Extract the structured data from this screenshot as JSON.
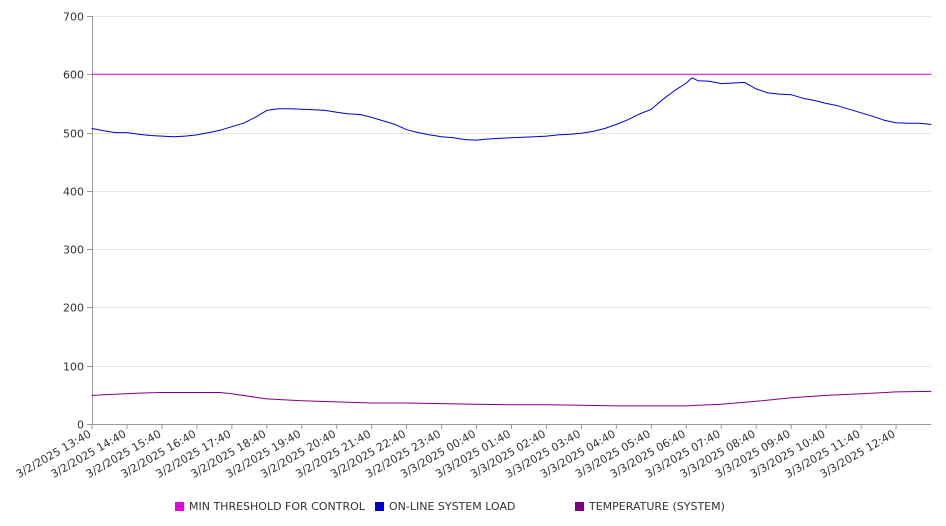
{
  "chart_data": {
    "type": "line",
    "title": "",
    "xlabel": "",
    "ylabel": "",
    "ylim": [
      0,
      700
    ],
    "y_ticks": [
      0,
      100,
      200,
      300,
      400,
      500,
      600,
      700
    ],
    "grid": "horizontal",
    "legend_position": "bottom",
    "x_tick_labels": [
      "3/2/2025 13:40",
      "3/2/2025 14:40",
      "3/2/2025 15:40",
      "3/2/2025 16:40",
      "3/2/2025 17:40",
      "3/2/2025 18:40",
      "3/2/2025 19:40",
      "3/2/2025 20:40",
      "3/2/2025 21:40",
      "3/2/2025 22:40",
      "3/2/2025 23:40",
      "3/3/2025 00:40",
      "3/3/2025 01:40",
      "3/3/2025 02:40",
      "3/3/2025 03:40",
      "3/3/2025 04:40",
      "3/3/2025 05:40",
      "3/3/2025 06:40",
      "3/3/2025 07:40",
      "3/3/2025 08:40",
      "3/3/2025 09:40",
      "3/3/2025 10:40",
      "3/3/2025 11:40",
      "3/3/2025 12:40"
    ],
    "x_range": [
      "3/2/2025 13:40",
      "3/3/2025 13:40"
    ],
    "series": [
      {
        "name": "MIN THRESHOLD FOR CONTROL",
        "color": "#e600e6",
        "points": [
          [
            "3/2/2025 13:40",
            600
          ],
          [
            "3/3/2025 13:40",
            600
          ]
        ]
      },
      {
        "name": "ON-LINE SYSTEM LOAD",
        "color": "#0000cc",
        "points": [
          [
            "3/2/2025 13:40",
            507
          ],
          [
            "3/2/2025 14:00",
            503
          ],
          [
            "3/2/2025 14:20",
            500
          ],
          [
            "3/2/2025 14:40",
            500
          ],
          [
            "3/2/2025 15:00",
            497
          ],
          [
            "3/2/2025 15:20",
            495
          ],
          [
            "3/2/2025 15:40",
            494
          ],
          [
            "3/2/2025 16:00",
            493
          ],
          [
            "3/2/2025 16:20",
            494
          ],
          [
            "3/2/2025 16:40",
            496
          ],
          [
            "3/2/2025 17:00",
            500
          ],
          [
            "3/2/2025 17:20",
            504
          ],
          [
            "3/2/2025 17:40",
            510
          ],
          [
            "3/2/2025 18:00",
            516
          ],
          [
            "3/2/2025 18:20",
            526
          ],
          [
            "3/2/2025 18:40",
            538
          ],
          [
            "3/2/2025 19:00",
            541
          ],
          [
            "3/2/2025 19:20",
            541
          ],
          [
            "3/2/2025 19:40",
            540
          ],
          [
            "3/2/2025 20:00",
            539
          ],
          [
            "3/2/2025 20:20",
            538
          ],
          [
            "3/2/2025 20:40",
            535
          ],
          [
            "3/2/2025 21:00",
            532
          ],
          [
            "3/2/2025 21:20",
            531
          ],
          [
            "3/2/2025 21:40",
            526
          ],
          [
            "3/2/2025 22:00",
            520
          ],
          [
            "3/2/2025 22:20",
            514
          ],
          [
            "3/2/2025 22:40",
            505
          ],
          [
            "3/2/2025 23:00",
            500
          ],
          [
            "3/2/2025 23:20",
            496
          ],
          [
            "3/2/2025 23:40",
            493
          ],
          [
            "3/3/2025 00:00",
            491
          ],
          [
            "3/3/2025 00:20",
            488
          ],
          [
            "3/3/2025 00:40",
            487
          ],
          [
            "3/3/2025 01:00",
            489
          ],
          [
            "3/3/2025 01:20",
            490
          ],
          [
            "3/3/2025 01:40",
            491
          ],
          [
            "3/3/2025 02:00",
            492
          ],
          [
            "3/3/2025 02:20",
            493
          ],
          [
            "3/3/2025 02:40",
            494
          ],
          [
            "3/3/2025 03:00",
            496
          ],
          [
            "3/3/2025 03:20",
            497
          ],
          [
            "3/3/2025 03:40",
            499
          ],
          [
            "3/3/2025 04:00",
            502
          ],
          [
            "3/3/2025 04:20",
            507
          ],
          [
            "3/3/2025 04:40",
            514
          ],
          [
            "3/3/2025 05:00",
            522
          ],
          [
            "3/3/2025 05:20",
            532
          ],
          [
            "3/3/2025 05:40",
            540
          ],
          [
            "3/3/2025 06:00",
            557
          ],
          [
            "3/3/2025 06:20",
            572
          ],
          [
            "3/3/2025 06:40",
            585
          ],
          [
            "3/3/2025 06:50",
            594
          ],
          [
            "3/3/2025 07:00",
            589
          ],
          [
            "3/3/2025 07:20",
            588
          ],
          [
            "3/3/2025 07:40",
            584
          ],
          [
            "3/3/2025 08:00",
            585
          ],
          [
            "3/3/2025 08:20",
            586
          ],
          [
            "3/3/2025 08:40",
            575
          ],
          [
            "3/3/2025 09:00",
            568
          ],
          [
            "3/3/2025 09:20",
            566
          ],
          [
            "3/3/2025 09:40",
            565
          ],
          [
            "3/3/2025 10:00",
            559
          ],
          [
            "3/3/2025 10:20",
            555
          ],
          [
            "3/3/2025 10:40",
            550
          ],
          [
            "3/3/2025 11:00",
            546
          ],
          [
            "3/3/2025 11:20",
            540
          ],
          [
            "3/3/2025 11:40",
            534
          ],
          [
            "3/3/2025 12:00",
            528
          ],
          [
            "3/3/2025 12:20",
            521
          ],
          [
            "3/3/2025 12:40",
            517
          ],
          [
            "3/3/2025 13:00",
            516
          ],
          [
            "3/3/2025 13:20",
            516
          ],
          [
            "3/3/2025 13:40",
            514
          ]
        ]
      },
      {
        "name": "TEMPERATURE (SYSTEM)",
        "color": "#800080",
        "points": [
          [
            "3/2/2025 13:40",
            49
          ],
          [
            "3/2/2025 14:20",
            51
          ],
          [
            "3/2/2025 15:00",
            53
          ],
          [
            "3/2/2025 15:40",
            54
          ],
          [
            "3/2/2025 16:40",
            54
          ],
          [
            "3/2/2025 17:20",
            54
          ],
          [
            "3/2/2025 17:40",
            52
          ],
          [
            "3/2/2025 18:20",
            46
          ],
          [
            "3/2/2025 18:40",
            43
          ],
          [
            "3/2/2025 19:40",
            40
          ],
          [
            "3/2/2025 20:40",
            38
          ],
          [
            "3/2/2025 21:40",
            36
          ],
          [
            "3/2/2025 22:40",
            36
          ],
          [
            "3/2/2025 23:40",
            35
          ],
          [
            "3/3/2025 00:40",
            34
          ],
          [
            "3/3/2025 01:40",
            33
          ],
          [
            "3/3/2025 02:40",
            33
          ],
          [
            "3/3/2025 03:40",
            32
          ],
          [
            "3/3/2025 04:40",
            31
          ],
          [
            "3/3/2025 05:40",
            31
          ],
          [
            "3/3/2025 06:40",
            31
          ],
          [
            "3/3/2025 07:00",
            32
          ],
          [
            "3/3/2025 07:40",
            34
          ],
          [
            "3/3/2025 08:40",
            39
          ],
          [
            "3/3/2025 09:40",
            45
          ],
          [
            "3/3/2025 10:40",
            49
          ],
          [
            "3/3/2025 11:40",
            52
          ],
          [
            "3/3/2025 12:40",
            55
          ],
          [
            "3/3/2025 13:40",
            56
          ]
        ]
      }
    ]
  },
  "legend": {
    "items": [
      {
        "label": "MIN THRESHOLD FOR CONTROL",
        "color": "#e600e6"
      },
      {
        "label": "ON-LINE SYSTEM LOAD",
        "color": "#0000cc"
      },
      {
        "label": "TEMPERATURE (SYSTEM)",
        "color": "#800080"
      }
    ]
  }
}
